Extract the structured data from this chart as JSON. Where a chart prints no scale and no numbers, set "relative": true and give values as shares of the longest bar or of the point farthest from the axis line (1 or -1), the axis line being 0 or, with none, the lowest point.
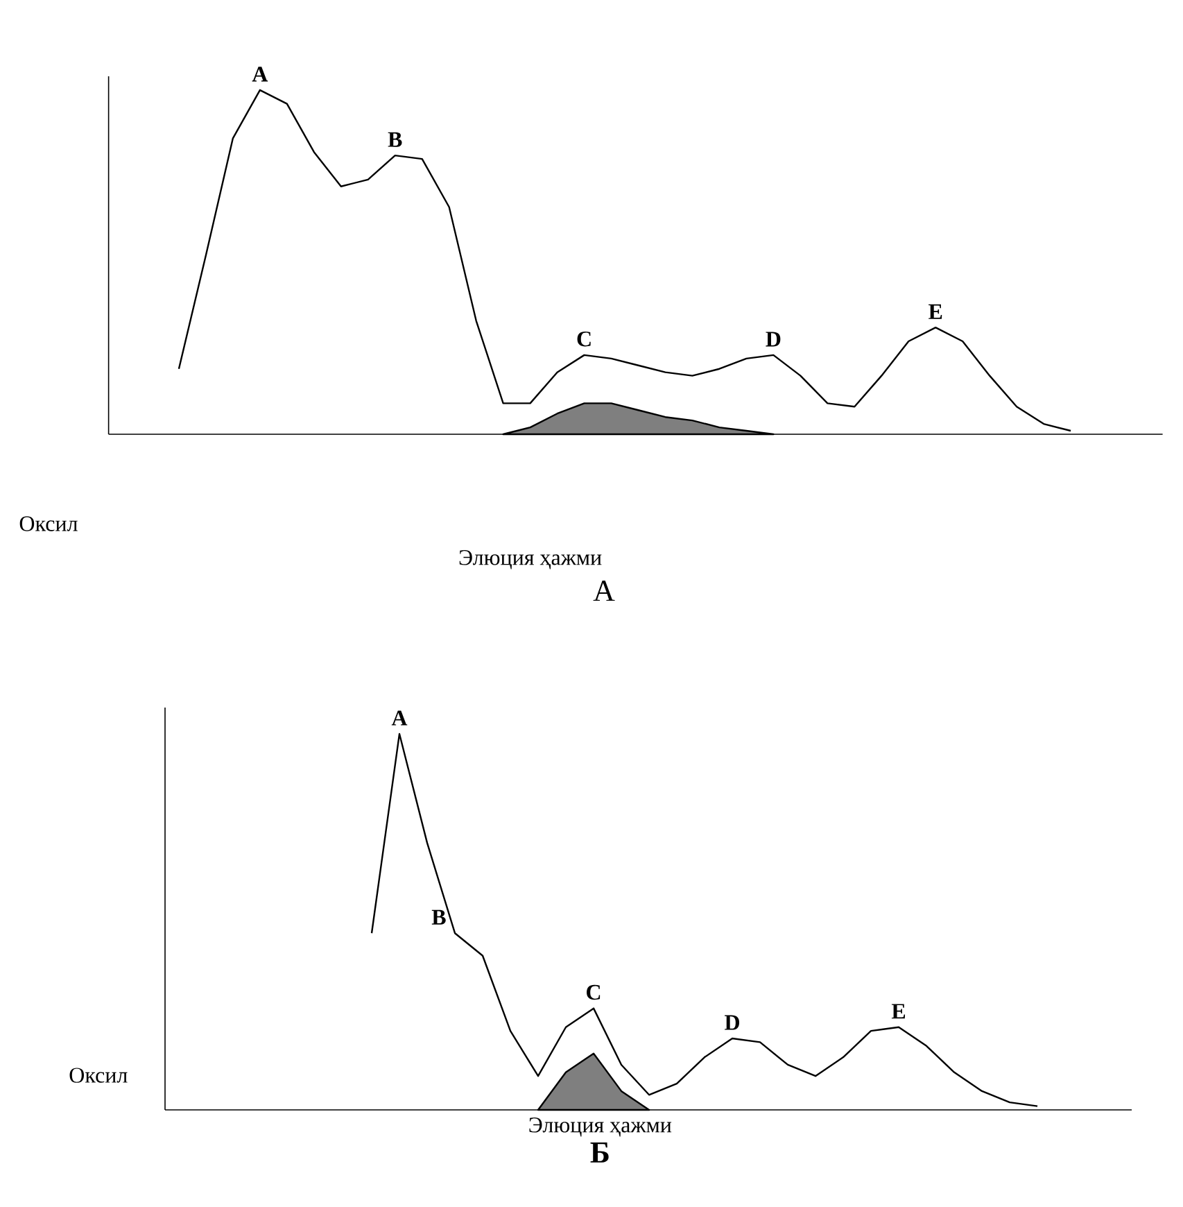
{
  "chart_data": [
    {
      "type": "line",
      "title": "А",
      "xlabel": "Элюция ҳажми",
      "ylabel": "Оксил",
      "relative": true,
      "categories": [
        null,
        null,
        null,
        null,
        null,
        null,
        null,
        null,
        null,
        null,
        null,
        null,
        null,
        null,
        null,
        null,
        null,
        null,
        null,
        null,
        null,
        null,
        null,
        null,
        null,
        null,
        null,
        null,
        null,
        null,
        null,
        null,
        null,
        null,
        null,
        null,
        null,
        null,
        null
      ],
      "series": [
        {
          "type": "line",
          "color": "#000000",
          "values": [
            null,
            null,
            0.19,
            0.52,
            0.86,
            1.0,
            0.96,
            0.82,
            0.72,
            0.74,
            0.81,
            0.8,
            0.66,
            0.33,
            0.09,
            0.09,
            0.18,
            0.23,
            0.22,
            0.2,
            0.18,
            0.17,
            0.19,
            0.22,
            0.23,
            0.17,
            0.09,
            0.08,
            0.17,
            0.27,
            0.31,
            0.27,
            0.17,
            0.08,
            0.03,
            0.01,
            null,
            null,
            null
          ]
        },
        {
          "type": "area",
          "color": "#7f7f7f",
          "values": [
            null,
            null,
            null,
            null,
            null,
            null,
            null,
            null,
            null,
            null,
            null,
            null,
            null,
            null,
            0,
            0.02,
            0.06,
            0.09,
            0.09,
            0.07,
            0.05,
            0.04,
            0.02,
            0.01,
            0,
            null,
            null,
            null,
            null,
            null,
            null,
            null,
            null,
            null,
            null,
            null,
            null,
            null,
            null
          ]
        }
      ],
      "annotations": [
        "A",
        "B",
        "C",
        "D",
        "E"
      ]
    },
    {
      "type": "line",
      "title": "Б",
      "xlabel": "Элюция ҳажми",
      "ylabel": "Оксил",
      "relative": true,
      "categories": [
        null,
        null,
        null,
        null,
        null,
        null,
        null,
        null,
        null,
        null,
        null,
        null,
        null,
        null,
        null,
        null,
        null,
        null,
        null,
        null,
        null,
        null,
        null,
        null,
        null,
        null,
        null,
        null,
        null,
        null,
        null,
        null,
        null,
        null
      ],
      "series": [
        {
          "type": "line",
          "color": "#000000",
          "values": [
            null,
            null,
            null,
            null,
            null,
            null,
            null,
            0.47,
            1.0,
            0.71,
            0.47,
            0.41,
            0.21,
            0.09,
            0.22,
            0.27,
            0.12,
            0.04,
            0.07,
            0.14,
            0.19,
            0.18,
            0.12,
            0.09,
            0.14,
            0.21,
            0.22,
            0.17,
            0.1,
            0.05,
            0.02,
            0.01,
            null,
            null
          ]
        },
        {
          "type": "area",
          "color": "#7f7f7f",
          "values": [
            null,
            null,
            null,
            null,
            null,
            null,
            null,
            null,
            null,
            null,
            null,
            null,
            null,
            0,
            0.1,
            0.15,
            0.05,
            0,
            null,
            null,
            null,
            null,
            null,
            null,
            null,
            null,
            null,
            null,
            null,
            null,
            null,
            null,
            null,
            null
          ]
        }
      ],
      "annotations": [
        "A",
        "B",
        "C",
        "D",
        "E"
      ]
    }
  ]
}
